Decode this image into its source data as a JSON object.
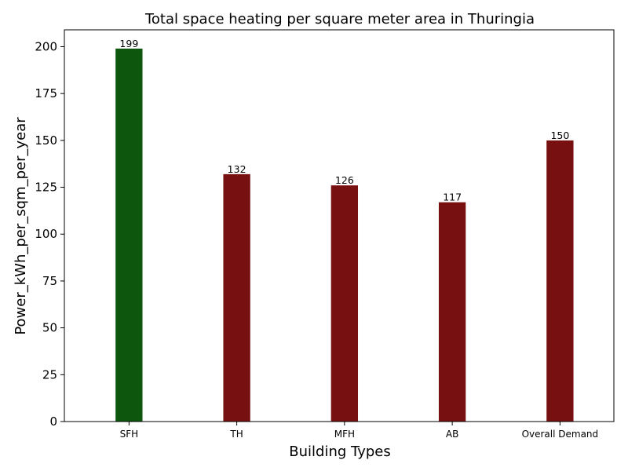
{
  "chart_data": {
    "type": "bar",
    "title": "Total space heating per square meter area in Thuringia",
    "xlabel": "Building Types",
    "ylabel": "Power_kWh_per_sqm_per_year",
    "categories": [
      "SFH",
      "TH",
      "MFH",
      "AB",
      "Overall Demand"
    ],
    "values": [
      199,
      132,
      126,
      117,
      150
    ],
    "data_labels": [
      "199",
      "132",
      "126",
      "117",
      "150"
    ],
    "colors": [
      "#0d560d",
      "#771111",
      "#771111",
      "#771111",
      "#771111"
    ],
    "ylim": [
      0,
      209
    ],
    "yticks": [
      0,
      25,
      50,
      75,
      100,
      125,
      150,
      175,
      200
    ],
    "grid": false,
    "legend": "none"
  }
}
